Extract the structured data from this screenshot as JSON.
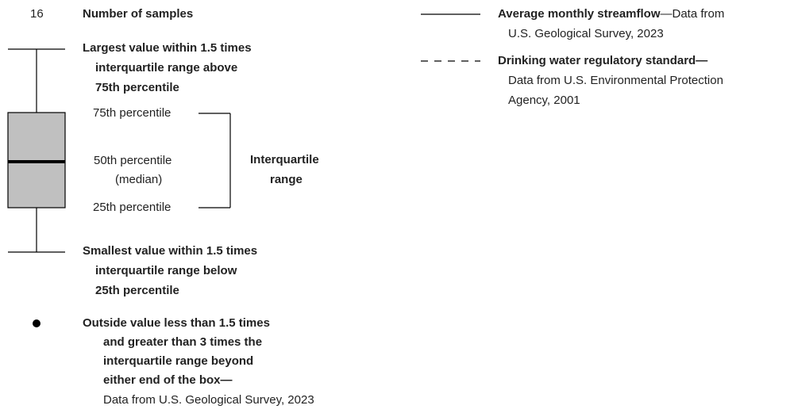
{
  "samples": {
    "count": "16",
    "label": "Number of samples"
  },
  "upper_whisker": [
    "Largest value within 1.5 times",
    "interquartile range above",
    "75th percentile"
  ],
  "box": {
    "p75": "75th percentile",
    "p50": [
      "50th percentile",
      "(median)"
    ],
    "p25": "25th percentile",
    "iqr": [
      "Interquartile",
      "range"
    ]
  },
  "lower_whisker": [
    "Smallest value within 1.5 times",
    "interquartile range below",
    "25th percentile"
  ],
  "outlier": {
    "label": [
      "Outside value less than 1.5 times",
      "and greater than 3 times the",
      "interquartile range beyond",
      "either end of the box—"
    ],
    "source": "Data from U.S. Geological Survey, 2023"
  },
  "lines": [
    {
      "label": "Average monthly streamflow",
      "source": [
        "—Data from",
        "U.S. Geological Survey, 2023"
      ]
    },
    {
      "label": "Drinking water regulatory standard—",
      "source": [
        "Data from U.S. Environmental Protection",
        "Agency, 2001"
      ]
    }
  ]
}
